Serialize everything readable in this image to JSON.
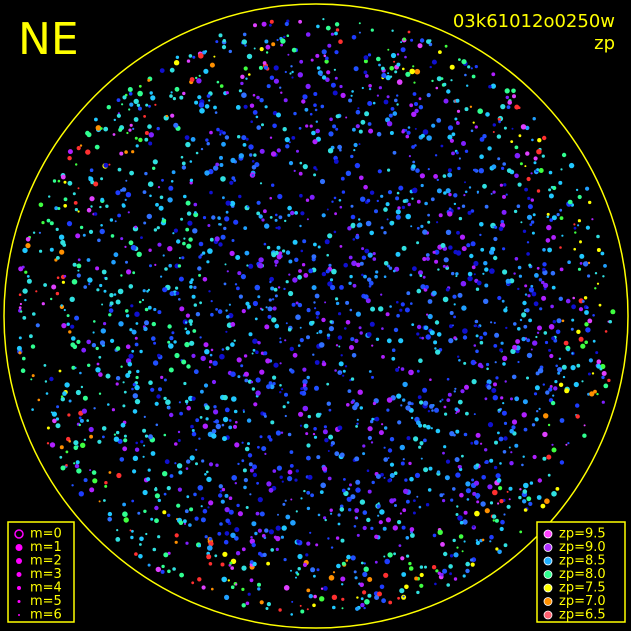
{
  "header": {
    "direction": "NE",
    "frame": "03k61012o0250w",
    "mode": "zp"
  },
  "legend_magnitude": {
    "color": "#ff00ff",
    "items": [
      "m=0",
      "m=1",
      "m=2",
      "m=3",
      "m=4",
      "m=5",
      "m=6"
    ]
  },
  "legend_zp": {
    "items": [
      {
        "label": "zp=9.5",
        "color": "#ff40ff"
      },
      {
        "label": "zp=9.0",
        "color": "#b030ff"
      },
      {
        "label": "zp=8.5",
        "color": "#20b0ff"
      },
      {
        "label": "zp=8.0",
        "color": "#30ff90"
      },
      {
        "label": "zp=7.5",
        "color": "#ffff00"
      },
      {
        "label": "zp=7.0",
        "color": "#ff9000"
      },
      {
        "label": "zp=6.5",
        "color": "#ff6070"
      }
    ]
  }
}
